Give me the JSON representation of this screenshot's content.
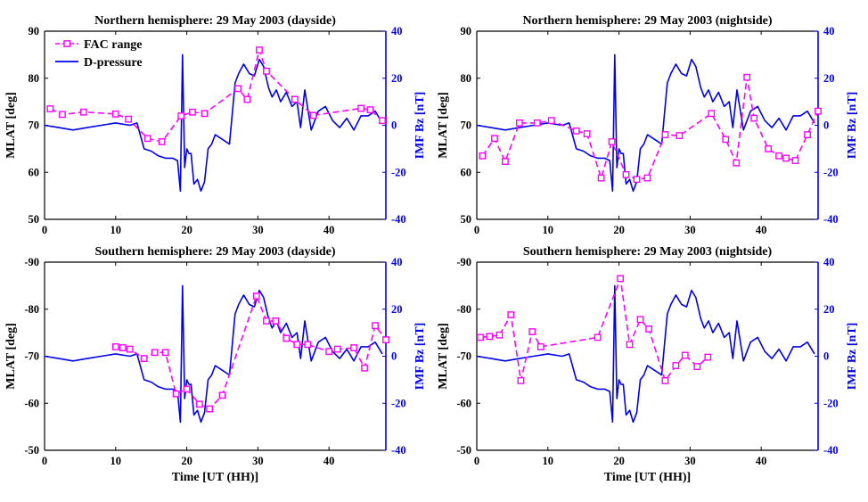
{
  "chart_data": [
    {
      "type": "line",
      "title": "Northern hemisphere: 29 May 2003 (dayside)",
      "xlabel": "",
      "ylabel": "MLAT [deg]",
      "ylabel_right": "IMF Bz [nT]",
      "xlim": [
        0,
        48
      ],
      "ylim": [
        50,
        90
      ],
      "ylim_right": [
        -40,
        40
      ],
      "xticks": [
        "0",
        "10",
        "20",
        "30",
        "40"
      ],
      "yticks": [
        "50",
        "60",
        "70",
        "80",
        "90"
      ],
      "yticks_right": [
        "-40",
        "-20",
        "0",
        "20",
        "40"
      ],
      "legend": {
        "position": "top-left",
        "entries": [
          "FAC range",
          "D-pressure"
        ]
      },
      "series": [
        {
          "name": "FAC range",
          "axis": "left",
          "style": "dashed-square",
          "color": "#ff00ff",
          "x": [
            0.8,
            2.5,
            5.5,
            10,
            11.8,
            14.5,
            16.5,
            19.2,
            20.8,
            22.5,
            27.2,
            28.5,
            30.2,
            31.2,
            35.2,
            37.8,
            44.5,
            45.8,
            47.5
          ],
          "y": [
            73.5,
            72.3,
            72.8,
            72.4,
            71.3,
            67.2,
            66.5,
            72.0,
            72.8,
            72.5,
            77.8,
            75.5,
            86.0,
            81.5,
            75.5,
            72.1,
            73.6,
            73.3,
            71.0
          ]
        },
        {
          "name": "D-pressure",
          "axis": "right",
          "style": "solid",
          "color": "#0000ee",
          "x": [
            0,
            2,
            4,
            6,
            8,
            10,
            12,
            13,
            14,
            15,
            16,
            17,
            18,
            18.7,
            19.1,
            19.4,
            19.7,
            20.0,
            20.3,
            20.6,
            21,
            21.5,
            22,
            22.5,
            23,
            23.5,
            24,
            25,
            26,
            26.8,
            27.3,
            28,
            28.8,
            29.5,
            30.2,
            30.8,
            31.5,
            32,
            32.6,
            33.2,
            34,
            34.8,
            35.5,
            36,
            36.6,
            37.5,
            38.5,
            39.5,
            40.5,
            41.5,
            42.5,
            43.5,
            44.5,
            45.5,
            46.5,
            47.5
          ],
          "y": [
            0,
            -1,
            -2,
            -1,
            0,
            1,
            0,
            1,
            -10,
            -11,
            -13,
            -14,
            -14,
            -15,
            -28,
            30,
            -18,
            -10,
            -12,
            -12,
            -25,
            -23,
            -28,
            -24,
            -10,
            -8,
            -4,
            -6,
            -8,
            18,
            22,
            26,
            22,
            21,
            28,
            25,
            16,
            12,
            15,
            10,
            14,
            8,
            10,
            -1,
            15,
            -2,
            6,
            8,
            2,
            -1,
            3,
            -2,
            4,
            4,
            6,
            1
          ]
        }
      ]
    },
    {
      "type": "line",
      "title": "Northern hemisphere: 29 May 2003 (nightside)",
      "xlabel": "",
      "ylabel": "MLAT [deg]",
      "ylabel_right": "IMF Bz [nT]",
      "xlim": [
        0,
        48
      ],
      "ylim": [
        50,
        90
      ],
      "ylim_right": [
        -40,
        40
      ],
      "xticks": [
        "0",
        "10",
        "20",
        "30",
        "40"
      ],
      "yticks": [
        "50",
        "60",
        "70",
        "80",
        "90"
      ],
      "yticks_right": [
        "-40",
        "-20",
        "0",
        "20",
        "40"
      ],
      "series": [
        {
          "name": "FAC range",
          "axis": "left",
          "style": "dashed-square",
          "color": "#ff00ff",
          "x": [
            0.8,
            2.5,
            4,
            6,
            8.5,
            10.5,
            14,
            15.5,
            17.5,
            19,
            21,
            22.5,
            24,
            26.5,
            28.5,
            33,
            35,
            36.5,
            38,
            39,
            41,
            42.5,
            43.5,
            44.8,
            46.5,
            48
          ],
          "y": [
            63.5,
            67.2,
            62.3,
            70.5,
            70.5,
            71.0,
            68.8,
            68.2,
            58.8,
            66.5,
            59.5,
            58.5,
            58.8,
            68.0,
            67.8,
            72.5,
            67.0,
            62.0,
            80.2,
            71.5,
            65.0,
            63.5,
            63.0,
            62.5,
            68.0,
            73.0
          ]
        },
        {
          "name": "D-pressure",
          "axis": "right",
          "style": "solid",
          "color": "#0000ee",
          "x": [
            0,
            2,
            4,
            6,
            8,
            10,
            12,
            13,
            14,
            15,
            16,
            17,
            18,
            18.7,
            19.1,
            19.4,
            19.7,
            20.0,
            20.3,
            20.6,
            21,
            21.5,
            22,
            22.5,
            23,
            23.5,
            24,
            25,
            26,
            26.8,
            27.3,
            28,
            28.8,
            29.5,
            30.2,
            30.8,
            31.5,
            32,
            32.6,
            33.2,
            34,
            34.8,
            35.5,
            36,
            36.6,
            37.5,
            38.5,
            39.5,
            40.5,
            41.5,
            42.5,
            43.5,
            44.5,
            45.5,
            46.5,
            47.5
          ],
          "y": [
            0,
            -1,
            -2,
            -1,
            0,
            1,
            0,
            1,
            -10,
            -11,
            -13,
            -14,
            -14,
            -15,
            -28,
            30,
            -18,
            -10,
            -12,
            -12,
            -25,
            -23,
            -28,
            -24,
            -10,
            -8,
            -4,
            -6,
            -8,
            18,
            22,
            26,
            22,
            21,
            28,
            25,
            16,
            12,
            15,
            10,
            14,
            8,
            10,
            -1,
            15,
            -2,
            6,
            8,
            2,
            -1,
            3,
            -2,
            4,
            4,
            6,
            1
          ]
        }
      ]
    },
    {
      "type": "line",
      "title": "Southern hemisphere: 29 May 2003 (dayside)",
      "xlabel": "Time [UT (HH)]",
      "ylabel": "MLAT [deg]",
      "ylabel_right": "IMF Bz [nT]",
      "xlim": [
        0,
        48
      ],
      "ylim": [
        -50,
        -90
      ],
      "ylim_right": [
        -40,
        40
      ],
      "xticks": [
        "0",
        "10",
        "20",
        "30",
        "40"
      ],
      "yticks": [
        "-50",
        "-60",
        "-70",
        "-80",
        "-90"
      ],
      "yticks_right": [
        "-40",
        "-20",
        "0",
        "20",
        "40"
      ],
      "series": [
        {
          "name": "FAC range",
          "axis": "left",
          "style": "dashed-square",
          "color": "#ff00ff",
          "x": [
            10,
            11,
            12,
            14,
            15.5,
            17,
            18.5,
            20,
            21.8,
            23.2,
            25,
            29.8,
            31.2,
            32.5,
            34,
            35.5,
            37,
            40,
            41.2,
            43.5,
            45,
            46.5,
            48
          ],
          "y": [
            -72.0,
            -71.8,
            -71.5,
            -69.5,
            -70.8,
            -70.8,
            -62.0,
            -63.0,
            -59.8,
            -58.8,
            -61.7,
            -82.8,
            -77.5,
            -77.5,
            -73.8,
            -72.5,
            -72.5,
            -71.0,
            -71.5,
            -71.8,
            -67.5,
            -76.5,
            -73.5
          ]
        },
        {
          "name": "D-pressure",
          "axis": "right",
          "style": "solid",
          "color": "#0000ee",
          "x": [
            0,
            2,
            4,
            6,
            8,
            10,
            12,
            13,
            14,
            15,
            16,
            17,
            18,
            18.7,
            19.1,
            19.4,
            19.7,
            20.0,
            20.3,
            20.6,
            21,
            21.5,
            22,
            22.5,
            23,
            23.5,
            24,
            25,
            26,
            26.8,
            27.3,
            28,
            28.8,
            29.5,
            30.2,
            30.8,
            31.5,
            32,
            32.6,
            33.2,
            34,
            34.8,
            35.5,
            36,
            36.6,
            37.5,
            38.5,
            39.5,
            40.5,
            41.5,
            42.5,
            43.5,
            44.5,
            45.5,
            46.5,
            47.5
          ],
          "y": [
            0,
            -1,
            -2,
            -1,
            0,
            1,
            0,
            1,
            -10,
            -11,
            -13,
            -14,
            -14,
            -15,
            -28,
            30,
            -18,
            -10,
            -12,
            -12,
            -25,
            -23,
            -28,
            -24,
            -10,
            -8,
            -4,
            -6,
            -8,
            18,
            22,
            26,
            22,
            21,
            28,
            25,
            16,
            12,
            15,
            10,
            14,
            8,
            10,
            -1,
            15,
            -2,
            6,
            8,
            2,
            -1,
            3,
            -2,
            4,
            4,
            6,
            1
          ]
        }
      ]
    },
    {
      "type": "line",
      "title": "Southern hemisphere: 29 May 2003 (nightside)",
      "xlabel": "Time [UT (HH)]",
      "ylabel": "MLAT [deg]",
      "ylabel_right": "IMF Bz [nT]",
      "xlim": [
        0,
        48
      ],
      "ylim": [
        -50,
        -90
      ],
      "ylim_right": [
        -40,
        40
      ],
      "xticks": [
        "0",
        "10",
        "20",
        "30",
        "40"
      ],
      "yticks": [
        "-50",
        "-60",
        "-70",
        "-80",
        "-90"
      ],
      "yticks_right": [
        "-40",
        "-20",
        "0",
        "20",
        "40"
      ],
      "series": [
        {
          "name": "FAC range",
          "axis": "left",
          "style": "dashed-square",
          "color": "#ff00ff",
          "x": [
            0.5,
            1.8,
            3.2,
            4.8,
            6.2,
            7.8,
            9,
            17,
            20.2,
            21.5,
            23,
            24.2,
            26.5,
            28,
            29.3,
            31,
            32.5
          ],
          "y": [
            -74.0,
            -74.2,
            -74.5,
            -78.8,
            -64.8,
            -75.2,
            -72.0,
            -74.0,
            -86.5,
            -72.5,
            -77.8,
            -75.8,
            -64.8,
            -68.0,
            -70.2,
            -67.8,
            -69.8
          ]
        },
        {
          "name": "D-pressure",
          "axis": "right",
          "style": "solid",
          "color": "#0000ee",
          "x": [
            0,
            2,
            4,
            6,
            8,
            10,
            12,
            13,
            14,
            15,
            16,
            17,
            18,
            18.7,
            19.1,
            19.4,
            19.7,
            20.0,
            20.3,
            20.6,
            21,
            21.5,
            22,
            22.5,
            23,
            23.5,
            24,
            25,
            26,
            26.8,
            27.3,
            28,
            28.8,
            29.5,
            30.2,
            30.8,
            31.5,
            32,
            32.6,
            33.2,
            34,
            34.8,
            35.5,
            36,
            36.6,
            37.5,
            38.5,
            39.5,
            40.5,
            41.5,
            42.5,
            43.5,
            44.5,
            45.5,
            46.5,
            47.5
          ],
          "y": [
            0,
            -1,
            -2,
            -1,
            0,
            1,
            0,
            1,
            -10,
            -11,
            -13,
            -14,
            -14,
            -15,
            -28,
            30,
            -18,
            -10,
            -12,
            -12,
            -25,
            -23,
            -28,
            -24,
            -10,
            -8,
            -4,
            -6,
            -8,
            18,
            22,
            26,
            22,
            21,
            28,
            25,
            16,
            12,
            15,
            10,
            14,
            8,
            10,
            -1,
            15,
            -2,
            6,
            8,
            2,
            -1,
            3,
            -2,
            4,
            4,
            6,
            1
          ]
        }
      ]
    }
  ]
}
